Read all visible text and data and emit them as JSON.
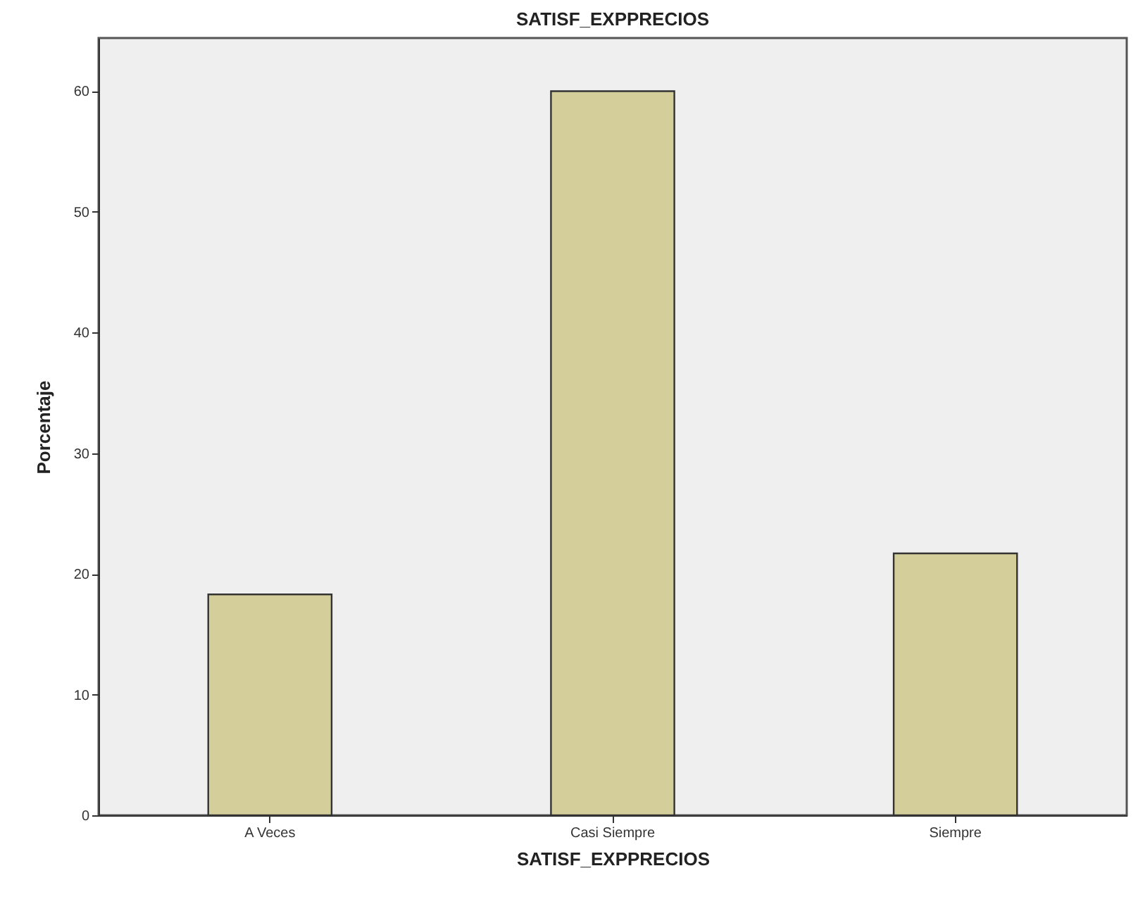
{
  "chart_data": {
    "type": "bar",
    "title": "SATISF_EXPPRECIOS",
    "xlabel": "SATISF_EXPPRECIOS",
    "ylabel": "Porcentaje",
    "categories": [
      "A Veces",
      "Casi Siempre",
      "Siempre"
    ],
    "values": [
      18.3,
      60.0,
      21.7
    ],
    "color": "#d4cf9a",
    "ylim": [
      0,
      64.4
    ],
    "yticks": [
      0,
      10,
      20,
      30,
      40,
      50,
      60
    ],
    "grid": false
  }
}
